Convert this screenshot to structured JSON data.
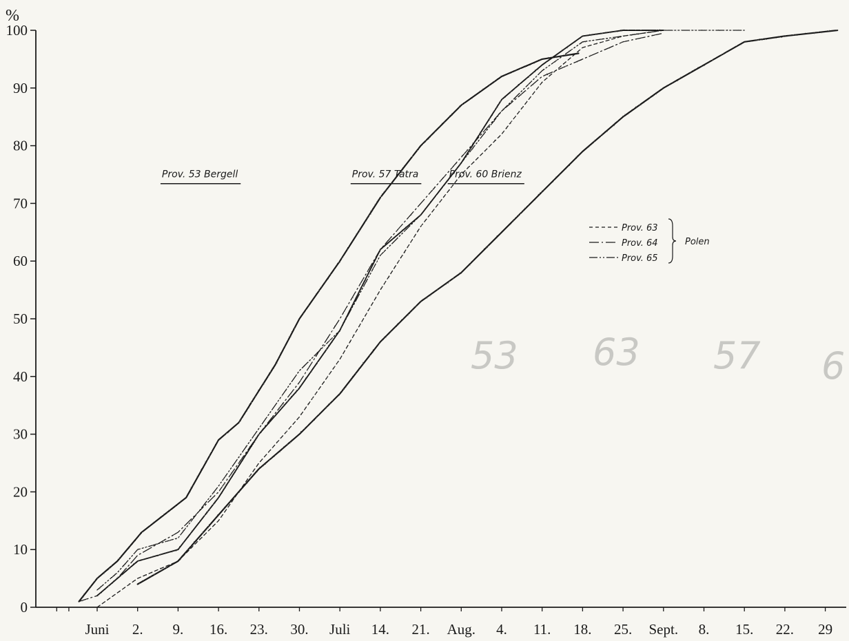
{
  "chart_data": {
    "type": "line",
    "unit_label": "%",
    "ylim": [
      0,
      100
    ],
    "yticks": [
      0,
      10,
      20,
      30,
      40,
      50,
      60,
      70,
      80,
      90,
      100
    ],
    "x_start_label": "Juni",
    "xtick_labels": [
      "Juni",
      "2.",
      "9.",
      "16.",
      "23.",
      "30.",
      "Juli",
      "14.",
      "21.",
      "Aug.",
      "4.",
      "11.",
      "18.",
      "25.",
      "Sept.",
      "8.",
      "15.",
      "22.",
      "29"
    ],
    "xtick_values": [
      0,
      1,
      2,
      3,
      4,
      5,
      6,
      7,
      8,
      9,
      10,
      11,
      12,
      13,
      14,
      15,
      16,
      17,
      18
    ],
    "xlim": [
      -1.2,
      18.3
    ],
    "grid": false,
    "annotations": [
      {
        "text": "Prov. 53  Bergell",
        "x": 1.6,
        "y": 74.5
      },
      {
        "text": "Prov. 57  Tatra",
        "x": 6.3,
        "y": 74.5
      },
      {
        "text": "Prov. 60  Brienz",
        "x": 8.7,
        "y": 74.5
      }
    ],
    "legend": {
      "placement": "right",
      "items": [
        {
          "label": "Prov. 63",
          "style": "dashed"
        },
        {
          "label": "Prov. 64",
          "style": "dashdot"
        },
        {
          "label": "Prov. 65",
          "style": "dashdotdot"
        }
      ],
      "group_label": "Polen"
    },
    "series": [
      {
        "name": "Prov. 53 Bergell",
        "style": "solid",
        "weight": 2.2,
        "x": [
          -0.45,
          0.0,
          0.5,
          1.1,
          2.2,
          3.0,
          3.5,
          4.4,
          5.0,
          6.0,
          7.0,
          8.0,
          9.0,
          10.0,
          11.0,
          11.9
        ],
        "y": [
          1,
          5,
          8,
          13,
          19,
          29,
          32,
          42,
          50,
          60,
          71,
          80,
          87,
          92,
          95,
          96
        ]
      },
      {
        "name": "Prov. 57 Tatra",
        "style": "solid",
        "weight": 1.9,
        "x": [
          0.0,
          1.0,
          2.0,
          3.0,
          4.0,
          5.0,
          6.0,
          7.0,
          8.0,
          9.0,
          10.0,
          11.0,
          12.0,
          13.0,
          14.0
        ],
        "y": [
          2,
          8,
          10,
          19,
          30,
          38,
          48,
          62,
          68,
          77,
          88,
          94,
          99,
          100,
          100
        ]
      },
      {
        "name": "Prov. 60 Brienz",
        "style": "solid",
        "weight": 2.2,
        "x": [
          1.0,
          2.0,
          3.0,
          4.0,
          5.0,
          6.0,
          7.0,
          8.0,
          9.0,
          10.0,
          11.0,
          12.0,
          13.0,
          14.0,
          15.0,
          16.0,
          17.0,
          18.3
        ],
        "y": [
          4,
          8,
          16,
          24,
          30,
          37,
          46,
          53,
          58,
          65,
          72,
          79,
          85,
          90,
          94,
          98,
          99,
          100
        ]
      },
      {
        "name": "Prov. 63",
        "style": "dashed",
        "weight": 1.3,
        "x": [
          0.0,
          1.0,
          2.0,
          3.0,
          4.0,
          5.0,
          6.0,
          7.0,
          8.0,
          9.0,
          10.0,
          11.0,
          12.0,
          13.0,
          14.0
        ],
        "y": [
          0,
          5,
          8,
          15,
          25,
          33,
          43,
          55,
          66,
          75,
          82,
          91,
          97,
          99,
          100
        ]
      },
      {
        "name": "Prov. 64",
        "style": "dashdot",
        "weight": 1.3,
        "x": [
          -0.45,
          0.0,
          0.5,
          1.0,
          2.0,
          3.0,
          4.0,
          5.0,
          6.0,
          7.0,
          8.0,
          9.0,
          10.0,
          11.0,
          12.0,
          13.0,
          14.0
        ],
        "y": [
          1,
          2,
          5,
          9,
          13,
          20,
          30,
          39,
          50,
          62,
          70,
          78,
          86,
          92,
          95,
          98,
          99.5
        ]
      },
      {
        "name": "Prov. 65",
        "style": "dashdotdot",
        "weight": 1.3,
        "x": [
          0.0,
          0.5,
          1.0,
          2.0,
          3.0,
          4.0,
          5.0,
          6.0,
          7.0,
          8.0,
          9.0,
          10.0,
          11.0,
          12.0,
          13.0,
          14.0,
          15.0,
          16.0
        ],
        "y": [
          3,
          6,
          10,
          12,
          21,
          31,
          41,
          48,
          61,
          68,
          77,
          86,
          93,
          98,
          99,
          100,
          100,
          100
        ]
      }
    ]
  },
  "pencil_marks": [
    "53",
    "63",
    "57",
    "6"
  ]
}
